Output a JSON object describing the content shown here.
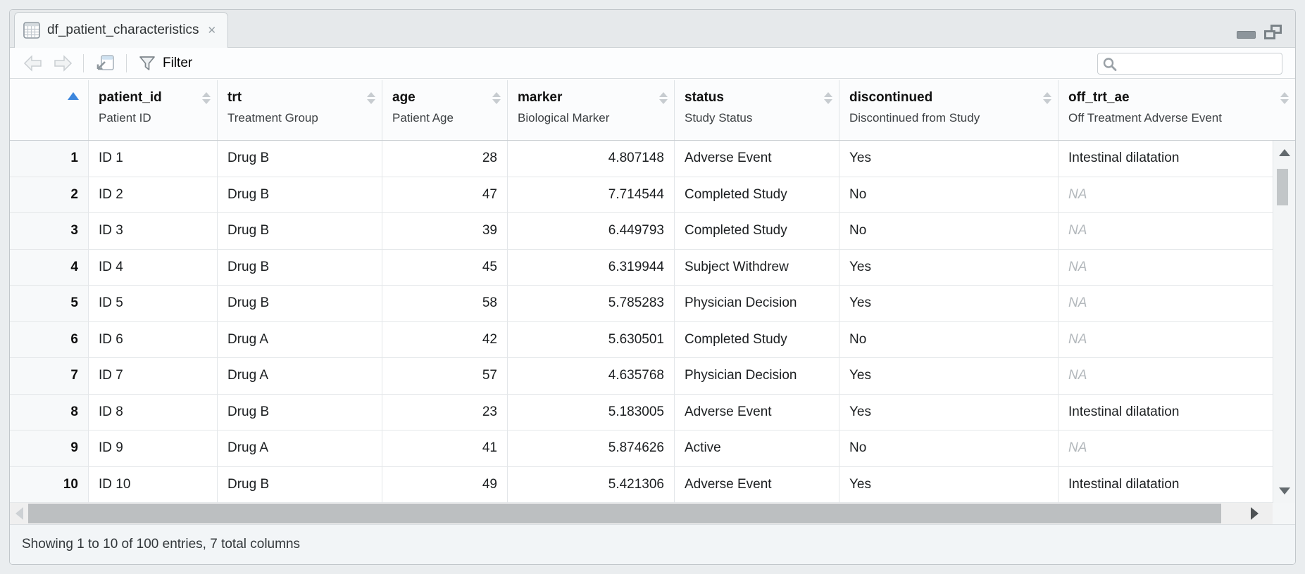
{
  "tab": {
    "title": "df_patient_characteristics",
    "close_glyph": "✕"
  },
  "toolbar": {
    "filter_label": "Filter",
    "search_value": "",
    "search_placeholder": ""
  },
  "table": {
    "sort_state": {
      "column": "rownum",
      "direction": "ascending"
    },
    "columns": [
      {
        "id": "rownum",
        "label": "",
        "sublabel": ""
      },
      {
        "id": "patient_id",
        "label": "patient_id",
        "sublabel": "Patient ID"
      },
      {
        "id": "trt",
        "label": "trt",
        "sublabel": "Treatment Group"
      },
      {
        "id": "age",
        "label": "age",
        "sublabel": "Patient Age"
      },
      {
        "id": "marker",
        "label": "marker",
        "sublabel": "Biological Marker"
      },
      {
        "id": "status",
        "label": "status",
        "sublabel": "Study Status"
      },
      {
        "id": "discontinued",
        "label": "discontinued",
        "sublabel": "Discontinued from Study"
      },
      {
        "id": "off_trt_ae",
        "label": "off_trt_ae",
        "sublabel": "Off Treatment Adverse Event"
      }
    ],
    "rows": [
      [
        "1",
        "ID 1",
        "Drug B",
        "28",
        "4.807148",
        "Adverse Event",
        "Yes",
        "Intestinal dilatation"
      ],
      [
        "2",
        "ID 2",
        "Drug B",
        "47",
        "7.714544",
        "Completed Study",
        "No",
        "NA"
      ],
      [
        "3",
        "ID 3",
        "Drug B",
        "39",
        "6.449793",
        "Completed Study",
        "No",
        "NA"
      ],
      [
        "4",
        "ID 4",
        "Drug B",
        "45",
        "6.319944",
        "Subject Withdrew",
        "Yes",
        "NA"
      ],
      [
        "5",
        "ID 5",
        "Drug B",
        "58",
        "5.785283",
        "Physician Decision",
        "Yes",
        "NA"
      ],
      [
        "6",
        "ID 6",
        "Drug A",
        "42",
        "5.630501",
        "Completed Study",
        "No",
        "NA"
      ],
      [
        "7",
        "ID 7",
        "Drug A",
        "57",
        "4.635768",
        "Physician Decision",
        "Yes",
        "NA"
      ],
      [
        "8",
        "ID 8",
        "Drug B",
        "23",
        "5.183005",
        "Adverse Event",
        "Yes",
        "Intestinal dilatation"
      ],
      [
        "9",
        "ID 9",
        "Drug A",
        "41",
        "5.874626",
        "Active",
        "No",
        "NA"
      ],
      [
        "10",
        "ID 10",
        "Drug B",
        "49",
        "5.421306",
        "Adverse Event",
        "Yes",
        "Intestinal dilatation"
      ]
    ],
    "na_display": "NA"
  },
  "status_bar": {
    "text": "Showing 1 to 10 of 100 entries, 7 total columns"
  },
  "colors": {
    "sort_accent": "#3c86dd",
    "na_text": "#b3b8bc",
    "row_number_bg": "#f7f9fa"
  }
}
